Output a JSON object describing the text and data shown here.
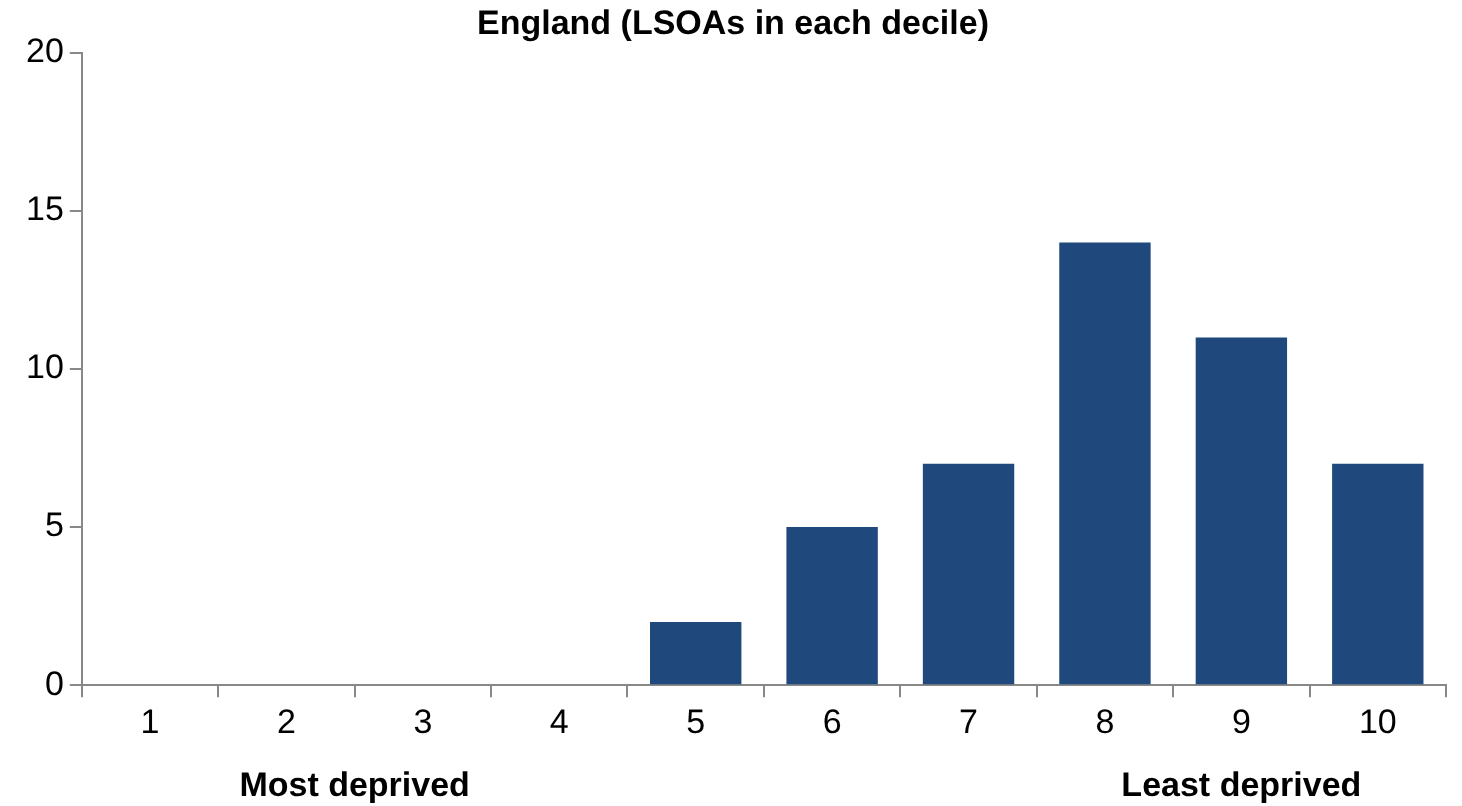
{
  "chart_data": {
    "type": "bar",
    "title": "England (LSOAs in each decile)",
    "categories": [
      "1",
      "2",
      "3",
      "4",
      "5",
      "6",
      "7",
      "8",
      "9",
      "10"
    ],
    "values": [
      0,
      0,
      0,
      0,
      2,
      5,
      7,
      14,
      11,
      7
    ],
    "color": "#1f497d",
    "ylim": [
      0,
      20
    ],
    "yticks": [
      0,
      5,
      10,
      15,
      20
    ],
    "grid": false,
    "legend": false,
    "annotations": [
      "Most deprived",
      "Least deprived"
    ]
  }
}
